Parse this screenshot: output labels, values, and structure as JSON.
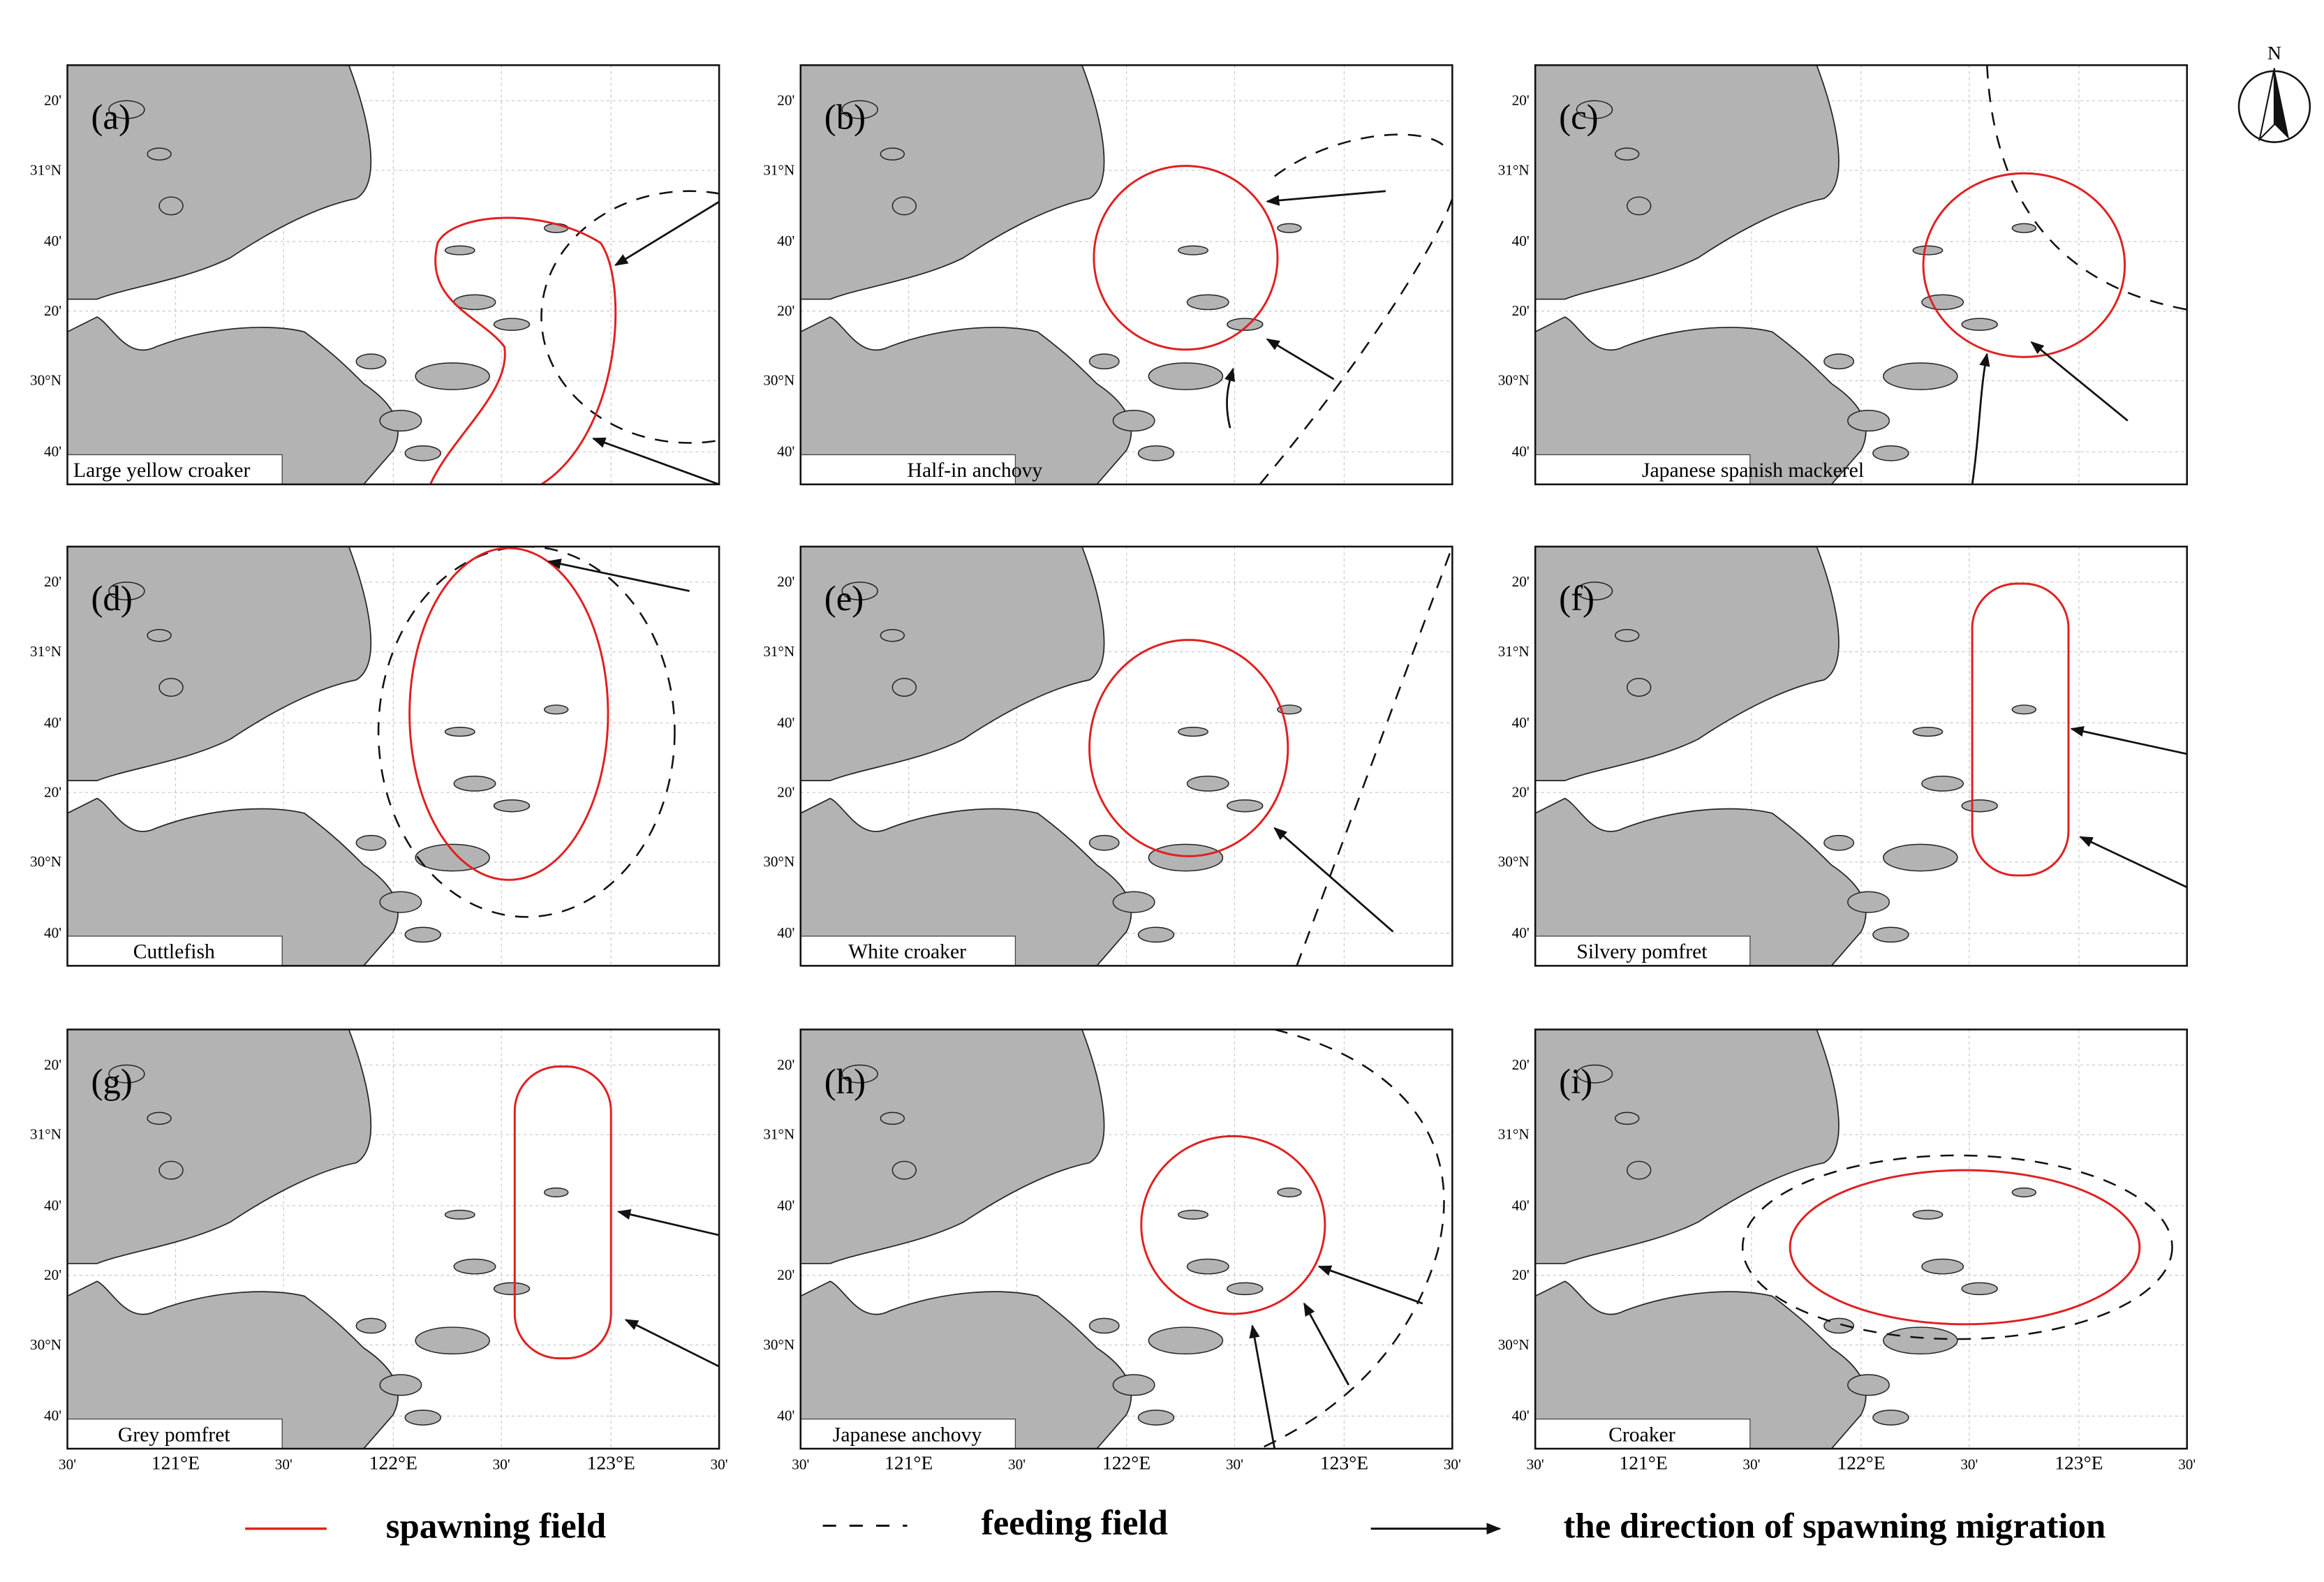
{
  "panels": [
    {
      "tag": "(a)",
      "name": "Large yellow croaker"
    },
    {
      "tag": "(b)",
      "name": "Half-in anchovy"
    },
    {
      "tag": "(c)",
      "name": "Japanese spanish mackerel"
    },
    {
      "tag": "(d)",
      "name": "Cuttlefish"
    },
    {
      "tag": "(e)",
      "name": "White  croaker"
    },
    {
      "tag": "(f)",
      "name": "Silvery pomfret"
    },
    {
      "tag": "(g)",
      "name": "Grey  pomfret"
    },
    {
      "tag": "(h)",
      "name": "Japanese anchovy"
    },
    {
      "tag": "(i)",
      "name": "Croaker"
    }
  ],
  "lat_labels": [
    "20'",
    "31°N",
    "40'",
    "20'",
    "30°N",
    "40'"
  ],
  "lon_labels": [
    "30'",
    "121°E",
    "30'",
    "122°E",
    "30'",
    "123°E",
    "30'"
  ],
  "legend": {
    "spawning": "spawning field",
    "feeding": "feeding field",
    "migration": "the direction of spawning migration"
  },
  "compass": "N"
}
